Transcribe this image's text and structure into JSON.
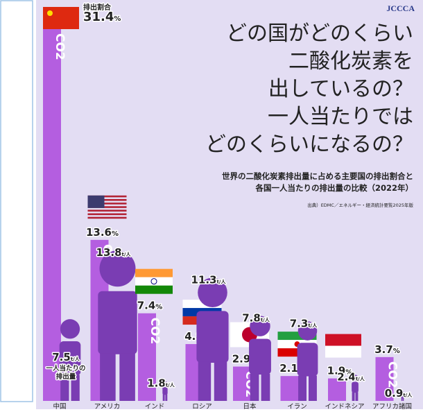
{
  "chart_data": {
    "type": "bar",
    "logo": "JCCCA",
    "title_lines": [
      "どの国がどのくらい",
      "二酸化炭素を",
      "出しているの？",
      "一人当たりでは",
      "どのくらいになるの？"
    ],
    "subtitle_lines": [
      "世界の二酸化炭素排出量に占める主要国の排出割合と",
      "各国一人当たりの排出量の比較（2022年）"
    ],
    "source": "出典）EDMC／エネルギー・経済統計要覧2025年版",
    "share_label": "排出割合",
    "per_capita_label_lines": [
      "一人当たりの",
      "排出量"
    ],
    "bar_label": "CO2",
    "categories": [
      "中国",
      "アメリカ",
      "インド",
      "ロシア",
      "日本",
      "イラン",
      "インドネシア",
      "アフリカ諸国"
    ],
    "series": [
      {
        "name": "排出割合",
        "color": "#b45ee0",
        "unit": "%",
        "values": [
          31.4,
          13.6,
          7.4,
          4.8,
          2.9,
          2.1,
          1.9,
          3.7
        ]
      },
      {
        "name": "一人当たりの排出量",
        "color": "#7a3db3",
        "unit": "t/人",
        "axis": "y2",
        "values": [
          7.5,
          13.8,
          1.8,
          11.3,
          7.8,
          7.3,
          2.4,
          0.9
        ]
      }
    ],
    "ylim": [
      0,
      31.4
    ],
    "y2lim": [
      0,
      14
    ]
  }
}
